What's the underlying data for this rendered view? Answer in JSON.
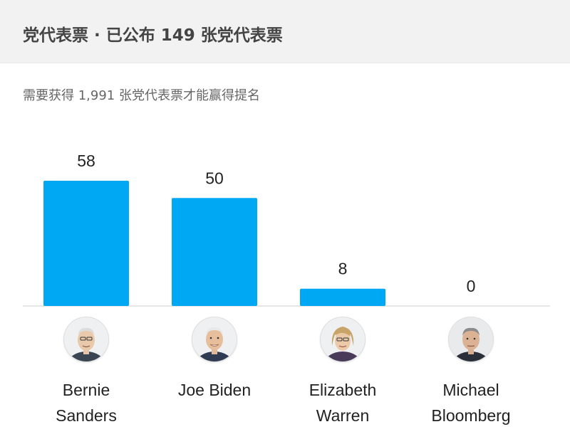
{
  "header": {
    "title": "党代表票 · 已公布 149 张党代表票"
  },
  "subtitle": "需要获得 1,991 张党代表票才能赢得提名",
  "colors": {
    "bar": "#00a8f3",
    "header_bg": "#f2f2f2"
  },
  "candidates": [
    {
      "name_line1": "Bernie",
      "name_line2": "Sanders",
      "icon": "bernie-sanders-photo"
    },
    {
      "name_line1": "Joe Biden",
      "name_line2": "",
      "icon": "joe-biden-photo"
    },
    {
      "name_line1": "Elizabeth",
      "name_line2": "Warren",
      "icon": "elizabeth-warren-photo"
    },
    {
      "name_line1": "Michael",
      "name_line2": "Bloomberg",
      "icon": "michael-bloomberg-photo"
    }
  ],
  "chart_data": {
    "type": "bar",
    "categories": [
      "Bernie Sanders",
      "Joe Biden",
      "Elizabeth Warren",
      "Michael Bloomberg"
    ],
    "values": [
      58,
      50,
      8,
      0
    ],
    "title": "党代表票 · 已公布 149 张党代表票",
    "subtitle": "需要获得 1,991 张党代表票才能赢得提名",
    "ylim": [
      0,
      58
    ],
    "grid": false,
    "legend": "none"
  }
}
